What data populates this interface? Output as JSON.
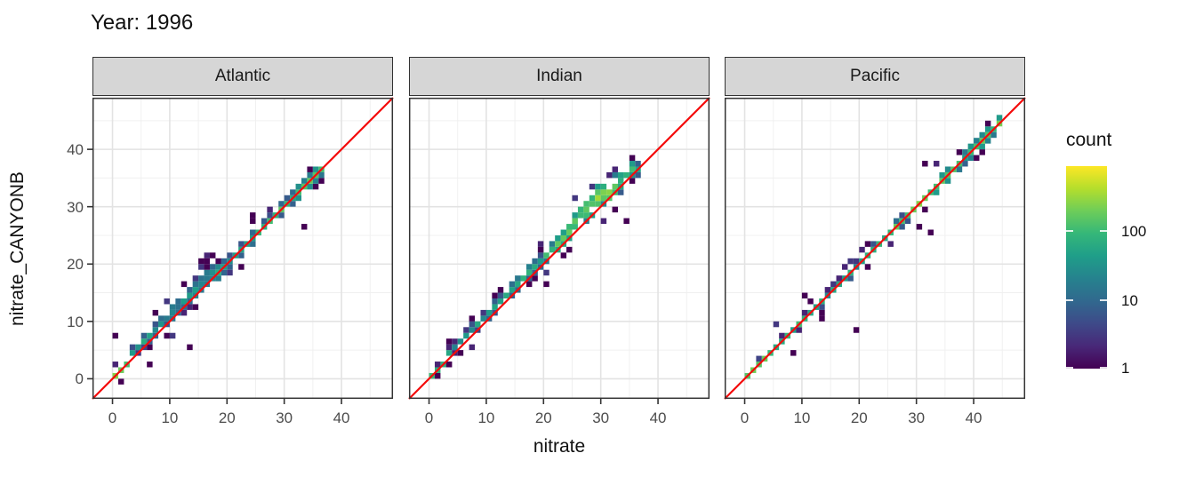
{
  "chart_data": {
    "type": "heatmap",
    "subtype": "faceted 2D bin count scatter (geom_bin2d) with identity reference line",
    "title": "Year: 1996",
    "xlabel": "nitrate",
    "ylabel": "nitrate_CANYONB",
    "x_ticks": [
      0,
      10,
      20,
      30,
      40
    ],
    "y_ticks": [
      0,
      10,
      20,
      30,
      40
    ],
    "minor_gridlines": [
      5,
      15,
      25,
      35,
      45
    ],
    "xlim": [
      -3.5,
      49
    ],
    "ylim": [
      -3.5,
      49
    ],
    "bin_size": 1,
    "grid": true,
    "identity_line": {
      "label": "y = x",
      "color": "#f40b0b",
      "width": 2.2
    },
    "legend": {
      "title": "count",
      "scale": "log10",
      "position": "right",
      "min": 1,
      "estimated_max": 900,
      "ticks": [
        {
          "label": "100",
          "frac_from_top": 0.32
        },
        {
          "label": "10",
          "frac_from_top": 0.662
        },
        {
          "label": "1",
          "frac_from_top": 0.996
        }
      ]
    },
    "viridis_stops": [
      "#440154",
      "#482878",
      "#3e4a89",
      "#31688e",
      "#26828e",
      "#1f9e89",
      "#35b779",
      "#6dcd59",
      "#b4de2c",
      "#fde725"
    ],
    "colors": {
      "strip_fill": "#d6d6d6",
      "strip_border": "#333333",
      "panel_border": "#333333",
      "grid_major": "#e3e3e3",
      "grid_minor": "#f0f0f0",
      "tick_mark": "#333333",
      "tick_label": "#4d4d4d",
      "text": "#111111"
    },
    "facets": [
      {
        "label": "Atlantic",
        "seed": 11,
        "x_data_range": [
          0,
          37
        ],
        "y_data_range": [
          0,
          36
        ],
        "pattern": "dense band on y=x; green hotspots near (0,0) and (33,35); wider scatter 8-16",
        "offset_profile": [
          [
            0,
            0.2
          ],
          [
            0.15,
            0.8
          ],
          [
            0.35,
            1.0
          ],
          [
            0.55,
            0.2
          ],
          [
            0.75,
            0.0
          ],
          [
            1,
            0.3
          ]
        ],
        "width_profile": [
          [
            0,
            0.7
          ],
          [
            0.25,
            1.5
          ],
          [
            0.4,
            2.1
          ],
          [
            0.55,
            1.2
          ],
          [
            0.8,
            1.0
          ],
          [
            1,
            1.2
          ]
        ],
        "count_profile": [
          [
            0,
            320
          ],
          [
            0.08,
            60
          ],
          [
            0.3,
            35
          ],
          [
            0.5,
            55
          ],
          [
            0.8,
            110
          ],
          [
            0.93,
            300
          ],
          [
            1,
            140
          ]
        ],
        "outliers": [
          [
            0,
            7
          ],
          [
            13,
            5
          ],
          [
            16,
            20
          ],
          [
            33,
            26
          ],
          [
            24,
            27
          ],
          [
            6,
            2
          ]
        ]
      },
      {
        "label": "Indian",
        "seed": 22,
        "x_data_range": [
          0,
          37
        ],
        "y_data_range": [
          0,
          37
        ],
        "pattern": "band sits ~1 unit above y=x; broad bulge above line at 23-33 with green/yellow core near (27,29)",
        "offset_profile": [
          [
            0,
            0.3
          ],
          [
            0.2,
            1.0
          ],
          [
            0.5,
            1.1
          ],
          [
            0.68,
            1.5
          ],
          [
            0.82,
            1.7
          ],
          [
            1,
            0.4
          ]
        ],
        "width_profile": [
          [
            0,
            0.7
          ],
          [
            0.2,
            1.1
          ],
          [
            0.5,
            1.3
          ],
          [
            0.7,
            1.9
          ],
          [
            0.84,
            2.5
          ],
          [
            1,
            1.1
          ]
        ],
        "count_profile": [
          [
            0,
            180
          ],
          [
            0.12,
            45
          ],
          [
            0.35,
            70
          ],
          [
            0.55,
            80
          ],
          [
            0.7,
            200
          ],
          [
            0.8,
            420
          ],
          [
            0.9,
            170
          ],
          [
            1,
            110
          ]
        ],
        "outliers": [
          [
            34,
            27
          ],
          [
            7,
            10
          ],
          [
            3,
            6
          ],
          [
            20,
            16
          ]
        ]
      },
      {
        "label": "Pacific",
        "seed": 33,
        "x_data_range": [
          0,
          45
        ],
        "y_data_range": [
          0,
          44
        ],
        "pattern": "tight band on y=x out to 45; green hotspot near (0,0); isolated outliers below and above line",
        "offset_profile": [
          [
            0,
            0.2
          ],
          [
            0.5,
            0.1
          ],
          [
            0.8,
            0.2
          ],
          [
            1,
            -0.4
          ]
        ],
        "width_profile": [
          [
            0,
            0.8
          ],
          [
            0.3,
            0.9
          ],
          [
            0.6,
            1.0
          ],
          [
            0.8,
            1.2
          ],
          [
            1,
            1.3
          ]
        ],
        "count_profile": [
          [
            0,
            380
          ],
          [
            0.1,
            110
          ],
          [
            0.3,
            70
          ],
          [
            0.5,
            95
          ],
          [
            0.65,
            190
          ],
          [
            0.75,
            240
          ],
          [
            0.85,
            140
          ],
          [
            1,
            180
          ]
        ],
        "outliers": [
          [
            19,
            8
          ],
          [
            32,
            25
          ],
          [
            31,
            37
          ],
          [
            10,
            14
          ],
          [
            13,
            11
          ],
          [
            8,
            4
          ]
        ]
      }
    ]
  }
}
